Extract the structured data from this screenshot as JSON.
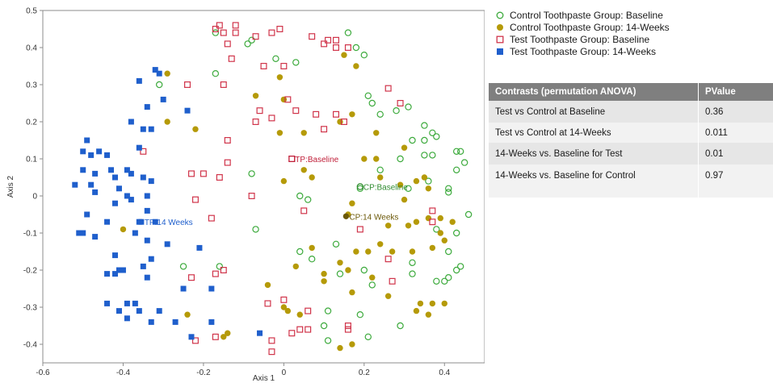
{
  "chart_data": {
    "type": "scatter",
    "xlabel": "Axis 1",
    "ylabel": "Axis 2",
    "xlim": [
      -0.6,
      0.5
    ],
    "ylim": [
      -0.45,
      0.5
    ],
    "xticks": [
      -0.6,
      -0.4,
      -0.2,
      0,
      0.2,
      0.4
    ],
    "xtick_labels": [
      "-0.6",
      "-0.4",
      "-0.2",
      "0",
      "0.2",
      "0.4"
    ],
    "yticks": [
      -0.4,
      -0.3,
      -0.2,
      -0.1,
      0,
      0.1,
      0.2,
      0.3,
      0.4,
      0.5
    ],
    "ytick_labels": [
      "-0.4",
      "-0.3",
      "-0.2",
      "-0.1",
      "0",
      "0.1",
      "0.2",
      "0.3",
      "0.4",
      "0.5"
    ],
    "grid": false,
    "legend_position": "top-right outside plot",
    "series": [
      {
        "name": "Control Toothpaste Group: Baseline",
        "marker": "open-circle",
        "color": "#3caa3c",
        "points": [
          [
            -0.17,
            0.44
          ],
          [
            -0.09,
            0.41
          ],
          [
            -0.08,
            0.42
          ],
          [
            -0.02,
            0.37
          ],
          [
            0.03,
            0.36
          ],
          [
            0.16,
            0.44
          ],
          [
            0.18,
            0.4
          ],
          [
            0.2,
            0.38
          ],
          [
            0.21,
            0.27
          ],
          [
            0.22,
            0.25
          ],
          [
            -0.31,
            0.3
          ],
          [
            -0.17,
            0.33
          ],
          [
            0.24,
            0.22
          ],
          [
            0.28,
            0.23
          ],
          [
            0.31,
            0.24
          ],
          [
            0.35,
            0.19
          ],
          [
            0.37,
            0.17
          ],
          [
            0.38,
            0.16
          ],
          [
            0.35,
            0.15
          ],
          [
            0.32,
            0.15
          ],
          [
            0.37,
            0.11
          ],
          [
            0.43,
            0.12
          ],
          [
            0.44,
            0.12
          ],
          [
            0.45,
            0.09
          ],
          [
            0.43,
            0.07
          ],
          [
            0.35,
            0.11
          ],
          [
            0.29,
            0.1
          ],
          [
            0.24,
            0.07
          ],
          [
            0.19,
            0.02
          ],
          [
            0.31,
            0.02
          ],
          [
            0.36,
            0.04
          ],
          [
            0.41,
            0.02
          ],
          [
            0.41,
            0.01
          ],
          [
            0.46,
            -0.05
          ],
          [
            0.38,
            -0.09
          ],
          [
            0.43,
            -0.1
          ],
          [
            0.41,
            -0.15
          ],
          [
            0.44,
            -0.19
          ],
          [
            0.43,
            -0.2
          ],
          [
            0.41,
            -0.22
          ],
          [
            0.4,
            -0.23
          ],
          [
            0.38,
            -0.23
          ],
          [
            0.32,
            -0.18
          ],
          [
            0.32,
            -0.21
          ],
          [
            0.22,
            -0.24
          ],
          [
            0.2,
            -0.2
          ],
          [
            0.14,
            -0.21
          ],
          [
            0.13,
            -0.13
          ],
          [
            0.07,
            -0.17
          ],
          [
            0.04,
            -0.15
          ],
          [
            -0.07,
            -0.09
          ],
          [
            -0.08,
            0.06
          ],
          [
            0.04,
            0.0
          ],
          [
            0.06,
            -0.01
          ],
          [
            -0.25,
            -0.19
          ],
          [
            -0.16,
            -0.19
          ],
          [
            0.11,
            -0.31
          ],
          [
            0.19,
            -0.32
          ],
          [
            0.1,
            -0.35
          ],
          [
            0.29,
            -0.35
          ],
          [
            0.21,
            -0.38
          ],
          [
            0.11,
            -0.39
          ]
        ]
      },
      {
        "name": "Control Toothpaste Group: 14-Weeks",
        "marker": "filled-circle",
        "color": "#b59a08",
        "points": [
          [
            -0.29,
            0.33
          ],
          [
            -0.29,
            0.2
          ],
          [
            -0.22,
            0.18
          ],
          [
            -0.07,
            0.27
          ],
          [
            -0.01,
            0.32
          ],
          [
            0.0,
            0.26
          ],
          [
            0.15,
            0.38
          ],
          [
            0.18,
            0.35
          ],
          [
            -0.01,
            0.17
          ],
          [
            0.05,
            0.17
          ],
          [
            0.14,
            0.2
          ],
          [
            0.17,
            0.22
          ],
          [
            0.23,
            0.17
          ],
          [
            0.3,
            0.13
          ],
          [
            0.23,
            0.1
          ],
          [
            0.2,
            0.1
          ],
          [
            0.05,
            0.07
          ],
          [
            0.07,
            0.05
          ],
          [
            0.0,
            0.04
          ],
          [
            0.24,
            0.05
          ],
          [
            0.29,
            0.03
          ],
          [
            0.33,
            0.04
          ],
          [
            0.35,
            0.05
          ],
          [
            0.36,
            0.02
          ],
          [
            0.3,
            -0.01
          ],
          [
            0.17,
            -0.02
          ],
          [
            0.16,
            -0.05
          ],
          [
            0.26,
            -0.08
          ],
          [
            0.33,
            -0.07
          ],
          [
            0.31,
            -0.08
          ],
          [
            0.36,
            -0.06
          ],
          [
            0.39,
            -0.06
          ],
          [
            0.4,
            -0.12
          ],
          [
            0.37,
            -0.14
          ],
          [
            0.42,
            -0.07
          ],
          [
            0.39,
            -0.1
          ],
          [
            0.32,
            -0.15
          ],
          [
            0.27,
            -0.15
          ],
          [
            0.24,
            -0.13
          ],
          [
            0.21,
            -0.15
          ],
          [
            0.18,
            -0.15
          ],
          [
            0.14,
            -0.18
          ],
          [
            0.1,
            -0.21
          ],
          [
            0.07,
            -0.14
          ],
          [
            0.03,
            -0.19
          ],
          [
            0.16,
            -0.2
          ],
          [
            0.22,
            -0.22
          ],
          [
            0.26,
            -0.27
          ],
          [
            0.17,
            -0.26
          ],
          [
            0.1,
            -0.23
          ],
          [
            0.01,
            -0.31
          ],
          [
            0.0,
            -0.3
          ],
          [
            0.04,
            -0.32
          ],
          [
            0.34,
            -0.29
          ],
          [
            0.4,
            -0.29
          ],
          [
            0.37,
            -0.29
          ],
          [
            0.33,
            -0.31
          ],
          [
            0.36,
            -0.32
          ],
          [
            -0.04,
            -0.24
          ],
          [
            -0.24,
            -0.32
          ],
          [
            -0.4,
            -0.09
          ],
          [
            -0.15,
            -0.38
          ],
          [
            -0.14,
            -0.37
          ],
          [
            0.14,
            -0.41
          ],
          [
            0.17,
            -0.4
          ]
        ]
      },
      {
        "name": "Test Toothpaste Group: Baseline",
        "marker": "open-square",
        "color": "#d0344a",
        "points": [
          [
            -0.17,
            0.45
          ],
          [
            -0.16,
            0.46
          ],
          [
            -0.12,
            0.46
          ],
          [
            -0.15,
            0.44
          ],
          [
            -0.12,
            0.44
          ],
          [
            -0.07,
            0.43
          ],
          [
            -0.03,
            0.44
          ],
          [
            -0.01,
            0.45
          ],
          [
            -0.14,
            0.41
          ],
          [
            -0.13,
            0.37
          ],
          [
            -0.05,
            0.35
          ],
          [
            0.0,
            0.35
          ],
          [
            0.07,
            0.43
          ],
          [
            0.1,
            0.41
          ],
          [
            0.11,
            0.42
          ],
          [
            0.13,
            0.42
          ],
          [
            0.13,
            0.4
          ],
          [
            0.16,
            0.4
          ],
          [
            -0.15,
            0.3
          ],
          [
            -0.24,
            0.3
          ],
          [
            0.26,
            0.29
          ],
          [
            0.29,
            0.25
          ],
          [
            0.01,
            0.26
          ],
          [
            0.03,
            0.23
          ],
          [
            0.08,
            0.22
          ],
          [
            0.13,
            0.22
          ],
          [
            -0.06,
            0.23
          ],
          [
            -0.07,
            0.2
          ],
          [
            -0.03,
            0.21
          ],
          [
            0.1,
            0.18
          ],
          [
            0.15,
            0.2
          ],
          [
            -0.14,
            0.15
          ],
          [
            -0.35,
            0.12
          ],
          [
            -0.14,
            0.09
          ],
          [
            0.02,
            0.1
          ],
          [
            -0.23,
            0.06
          ],
          [
            -0.2,
            0.06
          ],
          [
            -0.16,
            0.05
          ],
          [
            -0.08,
            0.0
          ],
          [
            -0.22,
            -0.01
          ],
          [
            -0.18,
            -0.06
          ],
          [
            0.05,
            -0.04
          ],
          [
            0.19,
            -0.09
          ],
          [
            0.37,
            -0.04
          ],
          [
            0.37,
            -0.07
          ],
          [
            0.26,
            -0.17
          ],
          [
            0.27,
            -0.23
          ],
          [
            -0.23,
            -0.22
          ],
          [
            -0.17,
            -0.21
          ],
          [
            -0.15,
            -0.2
          ],
          [
            0.0,
            -0.28
          ],
          [
            -0.04,
            -0.29
          ],
          [
            0.06,
            -0.31
          ],
          [
            0.02,
            -0.37
          ],
          [
            0.04,
            -0.36
          ],
          [
            0.16,
            -0.35
          ],
          [
            0.16,
            -0.36
          ],
          [
            0.06,
            -0.36
          ],
          [
            -0.17,
            -0.38
          ],
          [
            -0.22,
            -0.39
          ],
          [
            -0.03,
            -0.39
          ],
          [
            -0.03,
            -0.42
          ]
        ]
      },
      {
        "name": "Test Toothpaste Group: 14-Weeks",
        "marker": "filled-square",
        "color": "#1f5fcc",
        "points": [
          [
            -0.32,
            0.34
          ],
          [
            -0.31,
            0.33
          ],
          [
            -0.36,
            0.31
          ],
          [
            -0.3,
            0.26
          ],
          [
            -0.34,
            0.24
          ],
          [
            -0.24,
            0.23
          ],
          [
            -0.38,
            0.2
          ],
          [
            -0.35,
            0.18
          ],
          [
            -0.33,
            0.18
          ],
          [
            -0.49,
            0.15
          ],
          [
            -0.5,
            0.12
          ],
          [
            -0.46,
            0.12
          ],
          [
            -0.48,
            0.11
          ],
          [
            -0.44,
            0.11
          ],
          [
            -0.36,
            0.13
          ],
          [
            -0.43,
            0.07
          ],
          [
            -0.39,
            0.07
          ],
          [
            -0.5,
            0.07
          ],
          [
            -0.47,
            0.06
          ],
          [
            -0.42,
            0.05
          ],
          [
            -0.38,
            0.06
          ],
          [
            -0.35,
            0.05
          ],
          [
            -0.33,
            0.04
          ],
          [
            -0.48,
            0.03
          ],
          [
            -0.52,
            0.03
          ],
          [
            -0.41,
            0.02
          ],
          [
            -0.39,
            0.0
          ],
          [
            -0.38,
            -0.01
          ],
          [
            -0.47,
            0.01
          ],
          [
            -0.42,
            -0.02
          ],
          [
            -0.34,
            0.0
          ],
          [
            -0.34,
            -0.04
          ],
          [
            -0.49,
            -0.05
          ],
          [
            -0.44,
            -0.07
          ],
          [
            -0.36,
            -0.07
          ],
          [
            -0.32,
            -0.07
          ],
          [
            -0.51,
            -0.1
          ],
          [
            -0.5,
            -0.1
          ],
          [
            -0.47,
            -0.11
          ],
          [
            -0.37,
            -0.1
          ],
          [
            -0.34,
            -0.12
          ],
          [
            -0.29,
            -0.13
          ],
          [
            -0.21,
            -0.14
          ],
          [
            -0.33,
            -0.17
          ],
          [
            -0.42,
            -0.16
          ],
          [
            -0.41,
            -0.2
          ],
          [
            -0.4,
            -0.2
          ],
          [
            -0.35,
            -0.19
          ],
          [
            -0.34,
            -0.22
          ],
          [
            -0.42,
            -0.21
          ],
          [
            -0.44,
            -0.21
          ],
          [
            -0.25,
            -0.25
          ],
          [
            -0.18,
            -0.25
          ],
          [
            -0.44,
            -0.29
          ],
          [
            -0.41,
            -0.31
          ],
          [
            -0.39,
            -0.29
          ],
          [
            -0.37,
            -0.29
          ],
          [
            -0.36,
            -0.31
          ],
          [
            -0.39,
            -0.33
          ],
          [
            -0.33,
            -0.34
          ],
          [
            -0.31,
            -0.31
          ],
          [
            -0.27,
            -0.34
          ],
          [
            -0.18,
            -0.34
          ],
          [
            -0.23,
            -0.38
          ],
          [
            -0.06,
            -0.37
          ]
        ]
      }
    ],
    "centroids": [
      {
        "label": "TP:Baseline",
        "x": 0.02,
        "y": 0.1,
        "color": "#c0203a",
        "marker": "open-square",
        "anchor": "start"
      },
      {
        "label": "CP:Baseline",
        "x": 0.19,
        "y": 0.025,
        "color": "#2e8b2e",
        "marker": "open-circle",
        "anchor": "start"
      },
      {
        "label": "TP:14 Weeks",
        "x": -0.355,
        "y": -0.07,
        "color": "#1f5fcc",
        "marker": "filled-square",
        "anchor": "start"
      },
      {
        "label": "CP:14 Weeks",
        "x": 0.155,
        "y": -0.055,
        "color": "#6b5808",
        "marker": "filled-circle",
        "anchor": "start"
      }
    ]
  },
  "legend": {
    "items": [
      {
        "label": "Control Toothpaste Group: Baseline",
        "marker": "open-circle",
        "color": "#3caa3c"
      },
      {
        "label": "Control Toothpaste Group: 14-Weeks",
        "marker": "filled-circle",
        "color": "#b59a08"
      },
      {
        "label": "Test Toothpaste Group: Baseline",
        "marker": "open-square",
        "color": "#d0344a"
      },
      {
        "label": "Test Toothpaste Group: 14-Weeks",
        "marker": "filled-square",
        "color": "#1f5fcc"
      }
    ]
  },
  "contrasts_table": {
    "header": {
      "contrast": "Contrasts (permutation ANOVA)",
      "pvalue": "PValue"
    },
    "rows": [
      {
        "contrast": "Test vs Control at Baseline",
        "pvalue": "0.36"
      },
      {
        "contrast": "Test vs Control at 14-Weeks",
        "pvalue": "0.011"
      },
      {
        "contrast": "14-Weeks vs. Baseline for Test",
        "pvalue": "0.01"
      },
      {
        "contrast": "14-Weeks vs. Baseline for Control",
        "pvalue": "0.97"
      }
    ]
  }
}
